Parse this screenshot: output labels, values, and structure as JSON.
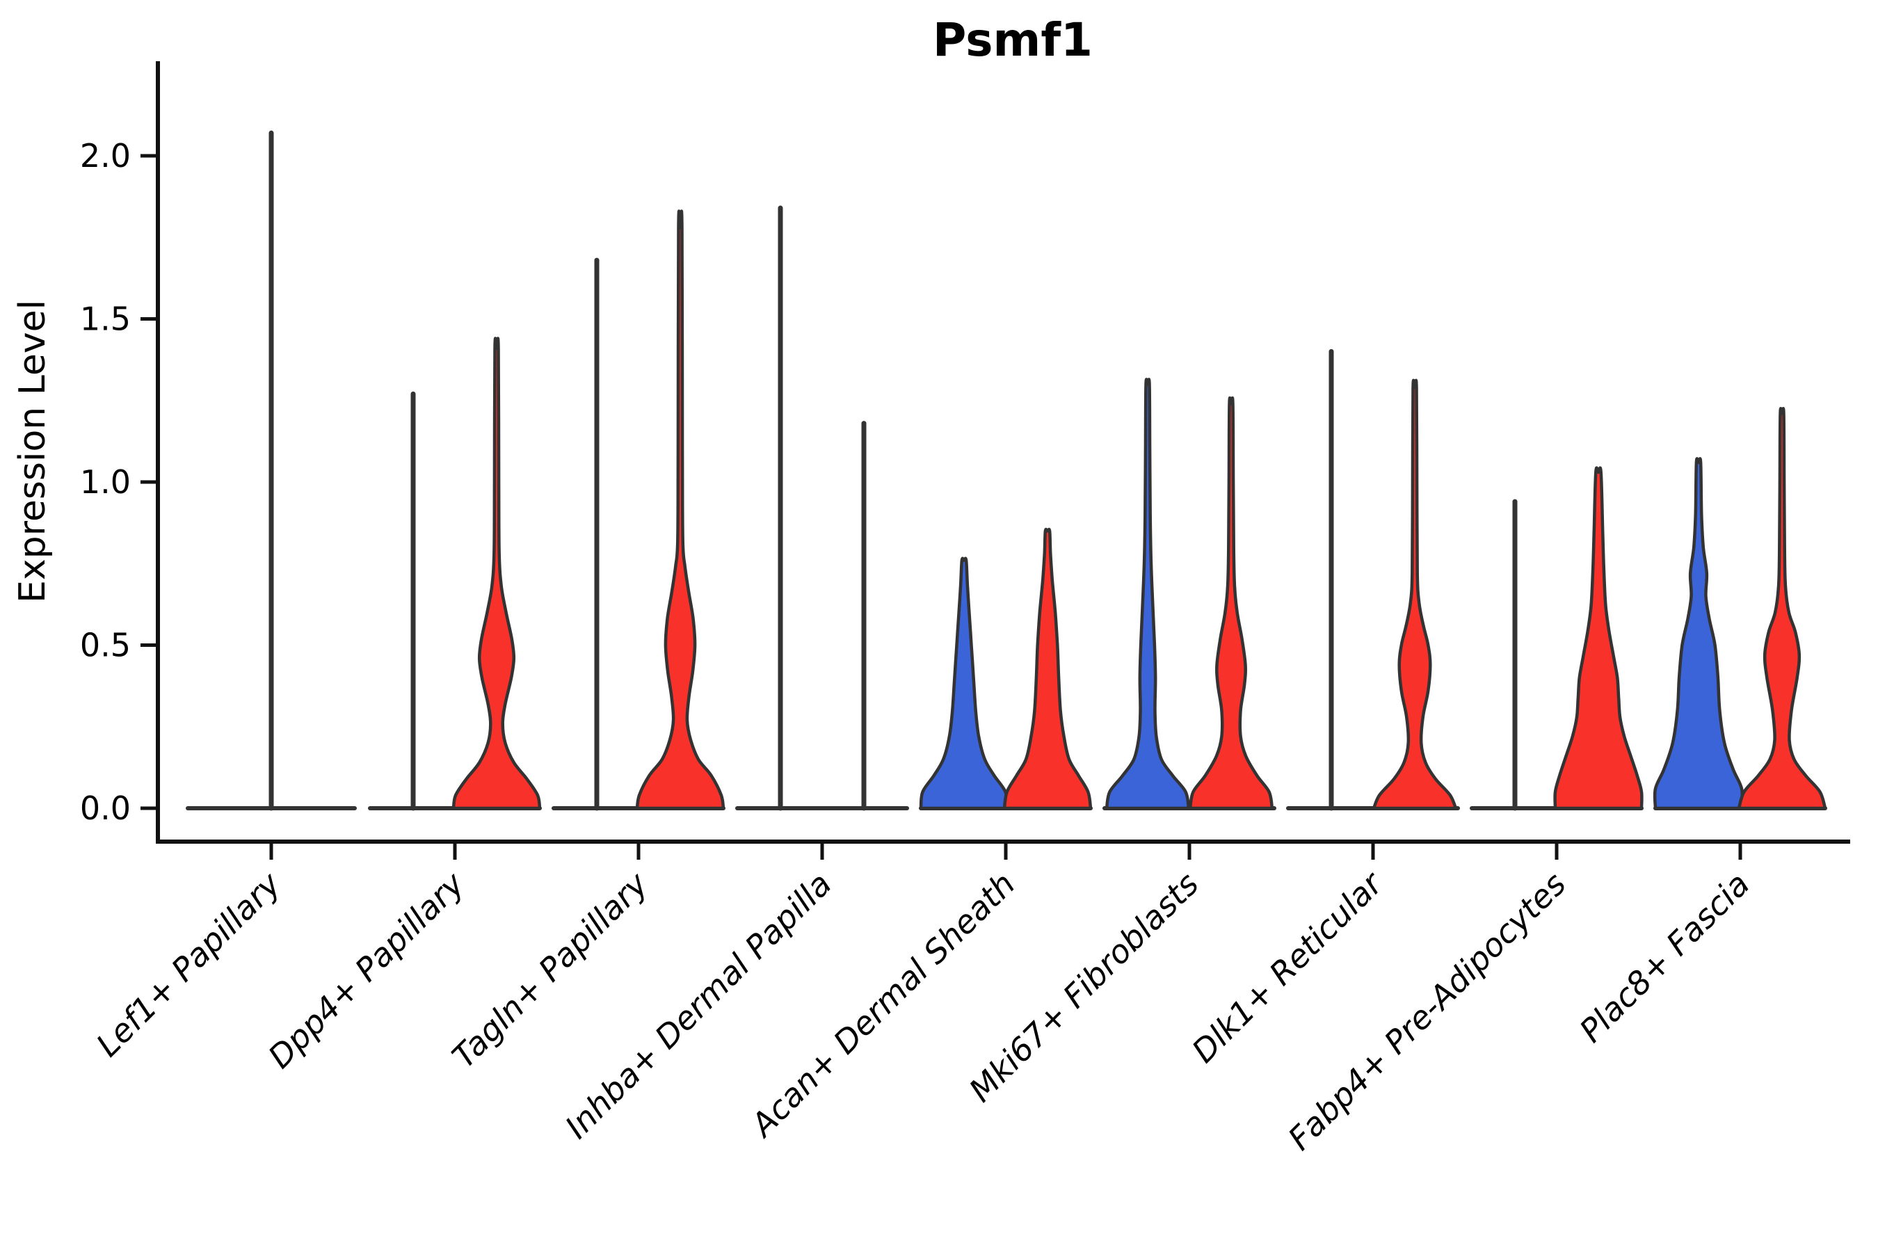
{
  "chart_data": {
    "type": "violin",
    "title": "Psmf1",
    "ylabel": "Expression Level",
    "yticks": [
      0.0,
      0.5,
      1.0,
      1.5,
      2.0
    ],
    "ylim": [
      0,
      2.2
    ],
    "legend_position": "none",
    "grid": false,
    "colors": {
      "blue": "#3A64D8",
      "red": "#F8322A",
      "outline": "#333333",
      "axis": "#111111"
    },
    "categories": [
      {
        "label": "Lef1+ Papillary",
        "violins": [
          {
            "side": "center",
            "style": "line",
            "max": 2.07
          }
        ]
      },
      {
        "label": "Dpp4+ Papillary",
        "violins": [
          {
            "side": "left",
            "style": "line",
            "max": 1.27
          },
          {
            "side": "right",
            "style": "filled",
            "color": "red",
            "max": 1.41,
            "profile": [
              [
                0,
                1
              ],
              [
                0.04,
                0.95
              ],
              [
                0.09,
                0.7
              ],
              [
                0.14,
                0.4
              ],
              [
                0.2,
                0.2
              ],
              [
                0.26,
                0.14
              ],
              [
                0.32,
                0.2
              ],
              [
                0.4,
                0.34
              ],
              [
                0.46,
                0.4
              ],
              [
                0.52,
                0.35
              ],
              [
                0.6,
                0.22
              ],
              [
                0.68,
                0.11
              ],
              [
                0.78,
                0.06
              ],
              [
                1.0,
                0.05
              ],
              [
                1.41,
                0.04
              ]
            ]
          }
        ]
      },
      {
        "label": "Tagln+ Papillary",
        "violins": [
          {
            "side": "left",
            "style": "line",
            "max": 1.68
          },
          {
            "side": "right",
            "style": "filled",
            "color": "red",
            "max": 1.78,
            "profile": [
              [
                0,
                1
              ],
              [
                0.04,
                0.95
              ],
              [
                0.1,
                0.72
              ],
              [
                0.15,
                0.42
              ],
              [
                0.21,
                0.24
              ],
              [
                0.27,
                0.16
              ],
              [
                0.34,
                0.2
              ],
              [
                0.42,
                0.29
              ],
              [
                0.5,
                0.34
              ],
              [
                0.58,
                0.3
              ],
              [
                0.66,
                0.2
              ],
              [
                0.74,
                0.11
              ],
              [
                0.82,
                0.06
              ],
              [
                1.1,
                0.05
              ],
              [
                1.78,
                0.04
              ]
            ]
          }
        ]
      },
      {
        "label": "Inhba+ Dermal Papilla",
        "violins": [
          {
            "side": "left",
            "style": "line",
            "max": 1.84
          },
          {
            "side": "right",
            "style": "line",
            "max": 1.18
          }
        ]
      },
      {
        "label": "Acan+ Dermal Sheath",
        "violins": [
          {
            "side": "left",
            "style": "filled",
            "color": "blue",
            "max": 0.76,
            "profile": [
              [
                0,
                1
              ],
              [
                0.05,
                0.96
              ],
              [
                0.1,
                0.7
              ],
              [
                0.15,
                0.48
              ],
              [
                0.22,
                0.34
              ],
              [
                0.3,
                0.27
              ],
              [
                0.4,
                0.22
              ],
              [
                0.5,
                0.17
              ],
              [
                0.6,
                0.12
              ],
              [
                0.68,
                0.08
              ],
              [
                0.76,
                0.05
              ]
            ]
          },
          {
            "side": "right",
            "style": "filled",
            "color": "red",
            "max": 0.85,
            "profile": [
              [
                0,
                1
              ],
              [
                0.05,
                0.94
              ],
              [
                0.1,
                0.72
              ],
              [
                0.15,
                0.5
              ],
              [
                0.22,
                0.38
              ],
              [
                0.3,
                0.3
              ],
              [
                0.4,
                0.26
              ],
              [
                0.5,
                0.23
              ],
              [
                0.6,
                0.18
              ],
              [
                0.7,
                0.11
              ],
              [
                0.78,
                0.07
              ],
              [
                0.85,
                0.05
              ]
            ]
          }
        ]
      },
      {
        "label": "Mki67+ Fibroblasts",
        "violins": [
          {
            "side": "left",
            "style": "filled",
            "color": "blue",
            "max": 1.3,
            "profile": [
              [
                0,
                0.95
              ],
              [
                0.05,
                0.88
              ],
              [
                0.1,
                0.58
              ],
              [
                0.15,
                0.32
              ],
              [
                0.22,
                0.2
              ],
              [
                0.3,
                0.17
              ],
              [
                0.4,
                0.18
              ],
              [
                0.5,
                0.16
              ],
              [
                0.62,
                0.12
              ],
              [
                0.75,
                0.08
              ],
              [
                0.9,
                0.06
              ],
              [
                1.1,
                0.05
              ],
              [
                1.3,
                0.04
              ]
            ]
          },
          {
            "side": "right",
            "style": "filled",
            "color": "red",
            "max": 1.24,
            "profile": [
              [
                0,
                0.95
              ],
              [
                0.05,
                0.88
              ],
              [
                0.1,
                0.6
              ],
              [
                0.16,
                0.34
              ],
              [
                0.22,
                0.22
              ],
              [
                0.3,
                0.22
              ],
              [
                0.38,
                0.31
              ],
              [
                0.44,
                0.33
              ],
              [
                0.52,
                0.25
              ],
              [
                0.6,
                0.14
              ],
              [
                0.68,
                0.08
              ],
              [
                0.8,
                0.06
              ],
              [
                1.0,
                0.05
              ],
              [
                1.24,
                0.04
              ]
            ]
          }
        ]
      },
      {
        "label": "Dlk1+ Reticular",
        "violins": [
          {
            "side": "left",
            "style": "line",
            "max": 1.4
          },
          {
            "side": "right",
            "style": "filled",
            "color": "red",
            "max": 1.29,
            "profile": [
              [
                0,
                0.95
              ],
              [
                0.04,
                0.82
              ],
              [
                0.09,
                0.48
              ],
              [
                0.14,
                0.25
              ],
              [
                0.2,
                0.15
              ],
              [
                0.28,
                0.19
              ],
              [
                0.36,
                0.31
              ],
              [
                0.44,
                0.36
              ],
              [
                0.5,
                0.31
              ],
              [
                0.56,
                0.2
              ],
              [
                0.63,
                0.1
              ],
              [
                0.72,
                0.06
              ],
              [
                1.0,
                0.05
              ],
              [
                1.29,
                0.04
              ]
            ]
          }
        ]
      },
      {
        "label": "Fabp4+ Pre-Adipocytes",
        "violins": [
          {
            "side": "left",
            "style": "line",
            "max": 0.94
          },
          {
            "side": "right",
            "style": "filled",
            "color": "red",
            "max": 1.03,
            "profile": [
              [
                0,
                1
              ],
              [
                0.05,
                1
              ],
              [
                0.1,
                0.9
              ],
              [
                0.16,
                0.75
              ],
              [
                0.22,
                0.6
              ],
              [
                0.28,
                0.5
              ],
              [
                0.34,
                0.47
              ],
              [
                0.4,
                0.44
              ],
              [
                0.46,
                0.36
              ],
              [
                0.54,
                0.25
              ],
              [
                0.62,
                0.17
              ],
              [
                0.72,
                0.13
              ],
              [
                0.85,
                0.1
              ],
              [
                1.03,
                0.06
              ]
            ]
          }
        ]
      },
      {
        "label": "Plac8+ Fascia",
        "violins": [
          {
            "side": "left",
            "style": "filled",
            "color": "blue",
            "max": 1.06,
            "profile": [
              [
                0,
                1
              ],
              [
                0.06,
                1
              ],
              [
                0.12,
                0.8
              ],
              [
                0.2,
                0.6
              ],
              [
                0.3,
                0.49
              ],
              [
                0.4,
                0.45
              ],
              [
                0.5,
                0.38
              ],
              [
                0.58,
                0.25
              ],
              [
                0.65,
                0.17
              ],
              [
                0.72,
                0.19
              ],
              [
                0.8,
                0.11
              ],
              [
                0.9,
                0.07
              ],
              [
                1.06,
                0.05
              ]
            ]
          },
          {
            "side": "right",
            "style": "filled",
            "color": "red",
            "max": 1.21,
            "profile": [
              [
                0,
                1
              ],
              [
                0.05,
                0.88
              ],
              [
                0.1,
                0.55
              ],
              [
                0.15,
                0.28
              ],
              [
                0.21,
                0.17
              ],
              [
                0.3,
                0.22
              ],
              [
                0.4,
                0.35
              ],
              [
                0.47,
                0.4
              ],
              [
                0.54,
                0.31
              ],
              [
                0.6,
                0.16
              ],
              [
                0.68,
                0.08
              ],
              [
                0.8,
                0.06
              ],
              [
                1.0,
                0.05
              ],
              [
                1.21,
                0.04
              ]
            ]
          }
        ]
      }
    ]
  }
}
